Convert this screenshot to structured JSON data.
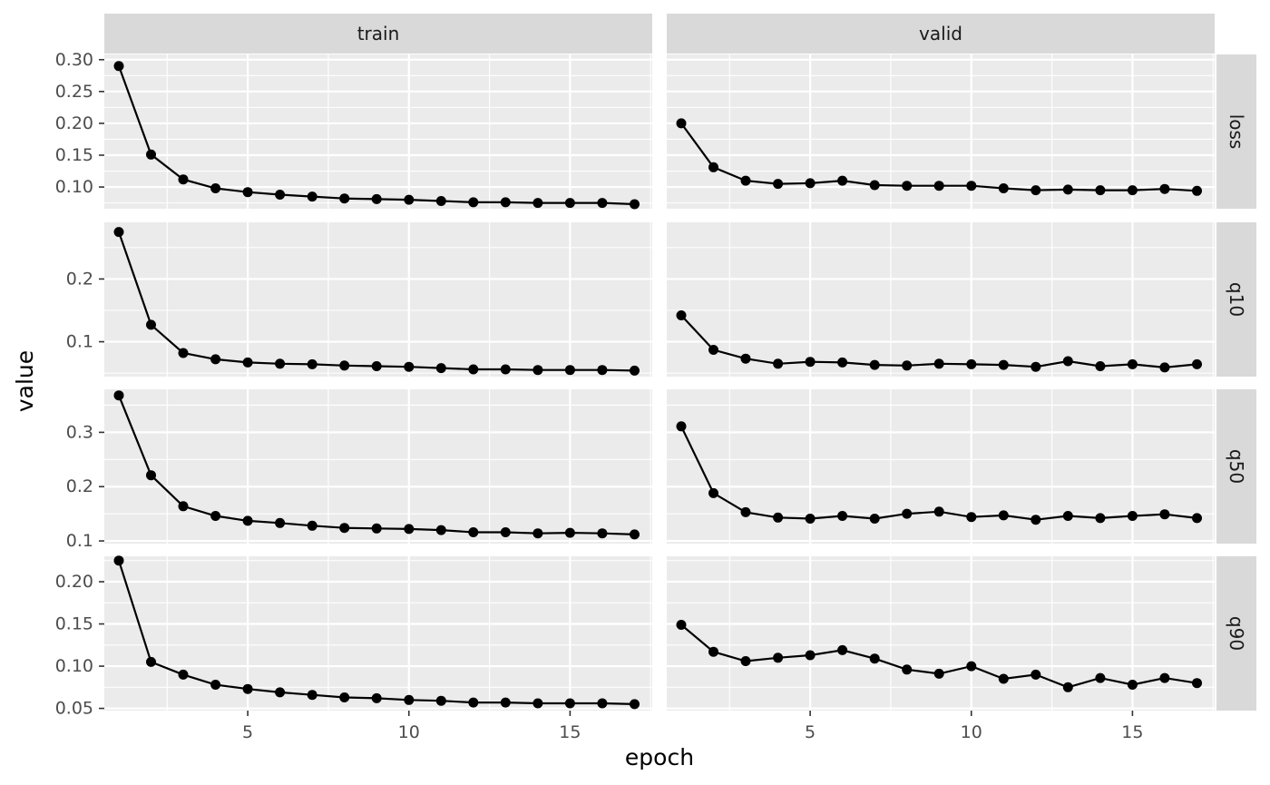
{
  "chart_data": {
    "type": "line",
    "xlabel": "epoch",
    "ylabel": "value",
    "col_facets": [
      "train",
      "valid"
    ],
    "row_facets": [
      "loss",
      "q10",
      "q50",
      "q90"
    ],
    "x": [
      1,
      2,
      3,
      4,
      5,
      6,
      7,
      8,
      9,
      10,
      11,
      12,
      13,
      14,
      15,
      16,
      17
    ],
    "xlim": [
      0.55,
      17.55
    ],
    "x_ticks": [
      5,
      10,
      15
    ],
    "panels": [
      {
        "facet_row": "loss",
        "facet_col": "train",
        "values": [
          0.29,
          0.151,
          0.112,
          0.098,
          0.092,
          0.088,
          0.085,
          0.082,
          0.081,
          0.08,
          0.078,
          0.076,
          0.076,
          0.075,
          0.075,
          0.075,
          0.073
        ]
      },
      {
        "facet_row": "loss",
        "facet_col": "valid",
        "values": [
          0.2,
          0.131,
          0.11,
          0.105,
          0.106,
          0.11,
          0.103,
          0.102,
          0.102,
          0.102,
          0.098,
          0.095,
          0.096,
          0.095,
          0.095,
          0.097,
          0.094
        ]
      },
      {
        "facet_row": "q10",
        "facet_col": "train",
        "values": [
          0.275,
          0.127,
          0.082,
          0.072,
          0.067,
          0.065,
          0.064,
          0.062,
          0.061,
          0.06,
          0.058,
          0.056,
          0.056,
          0.055,
          0.055,
          0.055,
          0.054
        ]
      },
      {
        "facet_row": "q10",
        "facet_col": "valid",
        "values": [
          0.142,
          0.087,
          0.073,
          0.065,
          0.068,
          0.067,
          0.063,
          0.062,
          0.065,
          0.064,
          0.063,
          0.06,
          0.069,
          0.061,
          0.064,
          0.059,
          0.064
        ]
      },
      {
        "facet_row": "q50",
        "facet_col": "train",
        "values": [
          0.368,
          0.221,
          0.164,
          0.146,
          0.137,
          0.133,
          0.128,
          0.124,
          0.123,
          0.122,
          0.12,
          0.116,
          0.116,
          0.114,
          0.115,
          0.114,
          0.112
        ]
      },
      {
        "facet_row": "q50",
        "facet_col": "valid",
        "values": [
          0.311,
          0.188,
          0.153,
          0.143,
          0.141,
          0.146,
          0.141,
          0.15,
          0.154,
          0.144,
          0.147,
          0.139,
          0.146,
          0.142,
          0.146,
          0.149,
          0.142
        ]
      },
      {
        "facet_row": "q90",
        "facet_col": "train",
        "values": [
          0.225,
          0.105,
          0.09,
          0.078,
          0.073,
          0.069,
          0.066,
          0.063,
          0.062,
          0.06,
          0.059,
          0.057,
          0.057,
          0.056,
          0.056,
          0.056,
          0.055
        ]
      },
      {
        "facet_row": "q90",
        "facet_col": "valid",
        "values": [
          0.149,
          0.117,
          0.106,
          0.11,
          0.113,
          0.119,
          0.109,
          0.096,
          0.091,
          0.1,
          0.085,
          0.09,
          0.075,
          0.086,
          0.078,
          0.086,
          0.08
        ]
      }
    ],
    "y_axes": [
      {
        "facet_row": "loss",
        "ylim": [
          0.0659,
          0.3082
        ],
        "ticks": [
          "0.10",
          "0.15",
          "0.20",
          "0.25",
          "0.30"
        ],
        "tick_values": [
          0.1,
          0.15,
          0.2,
          0.25,
          0.3
        ]
      },
      {
        "facet_row": "q10",
        "ylim": [
          0.0444,
          0.2903
        ],
        "ticks": [
          "0.1",
          "0.2"
        ],
        "tick_values": [
          0.1,
          0.2
        ]
      },
      {
        "facet_row": "q50",
        "ylim": [
          0.0951,
          0.3792
        ],
        "ticks": [
          "0.1",
          "0.2",
          "0.3"
        ],
        "tick_values": [
          0.1,
          0.2,
          0.3
        ]
      },
      {
        "facet_row": "q90",
        "ylim": [
          0.0474,
          0.2301
        ],
        "ticks": [
          "0.05",
          "0.10",
          "0.15",
          "0.20"
        ],
        "tick_values": [
          0.05,
          0.1,
          0.15,
          0.2
        ]
      }
    ],
    "panel_background": "#ebebeb",
    "strip_background": "#d9d9d9",
    "grid": true,
    "line_color": "#000000",
    "point_color": "#000000"
  }
}
